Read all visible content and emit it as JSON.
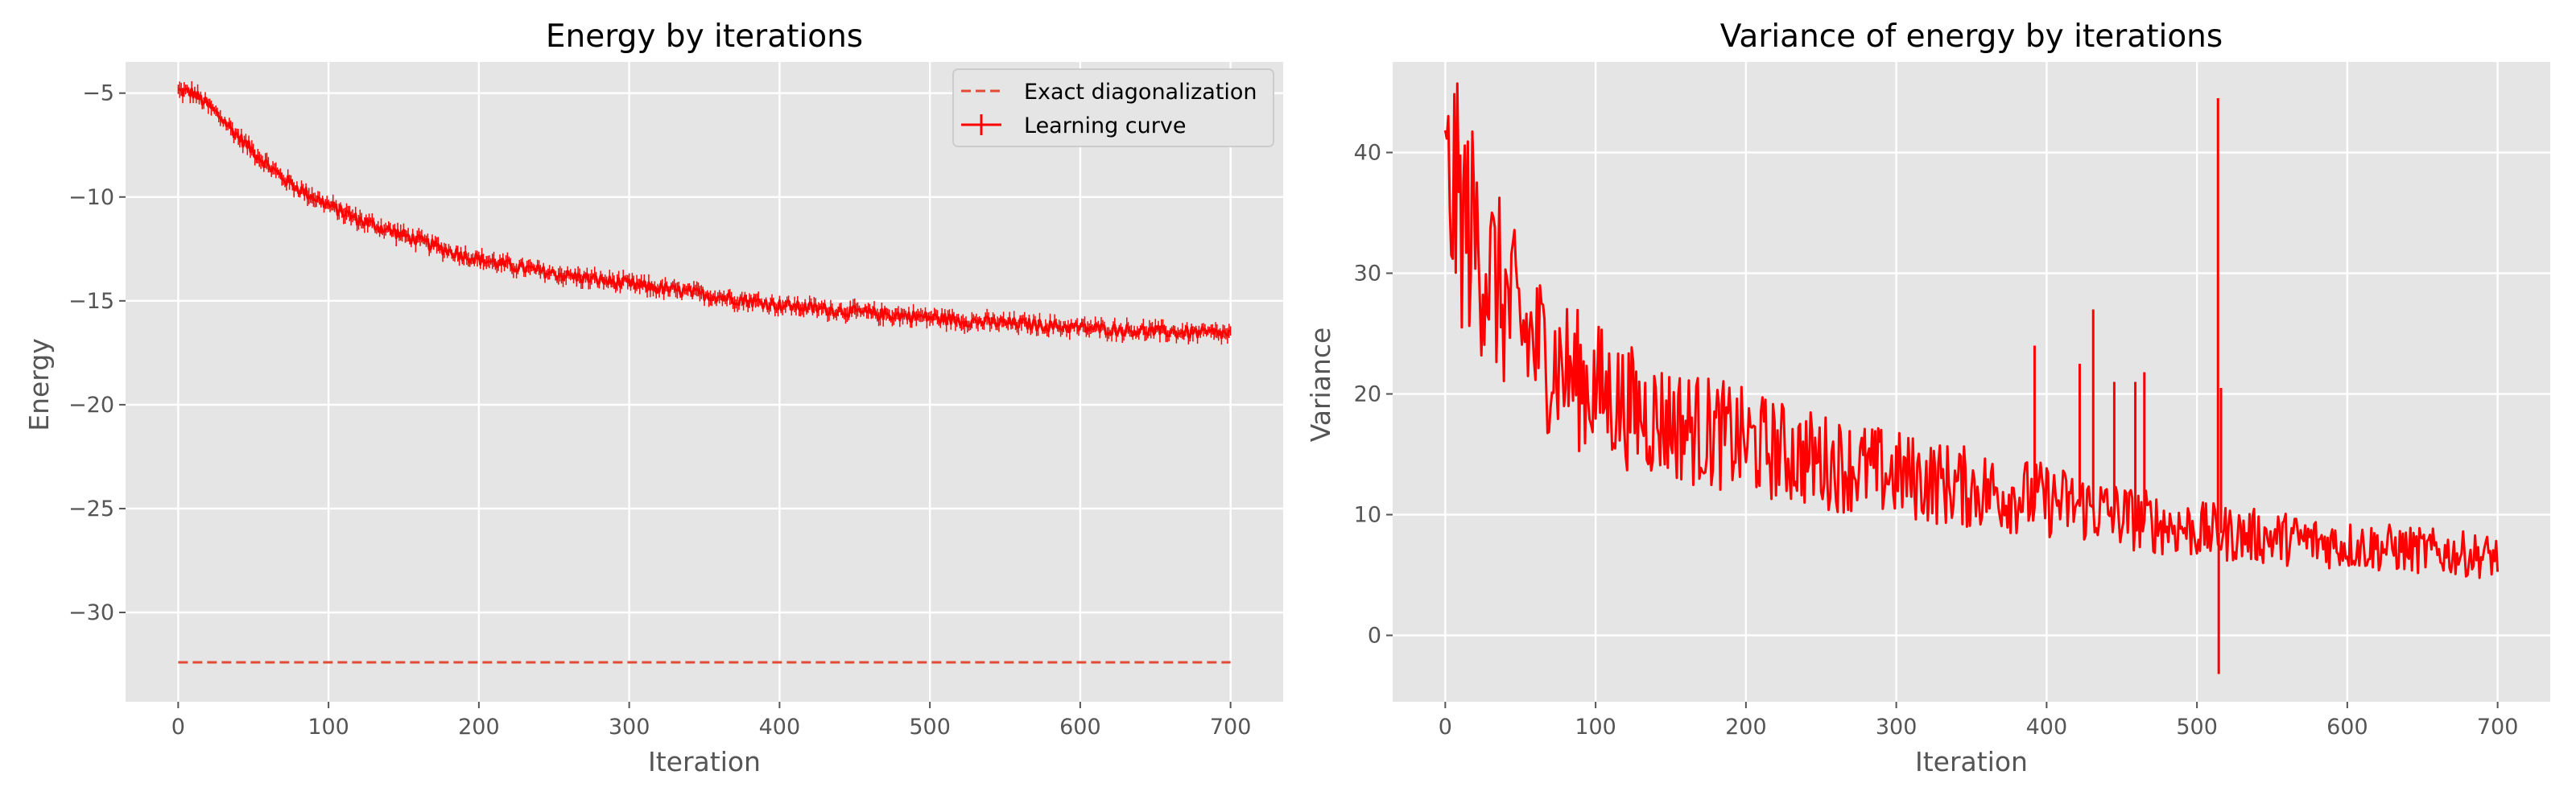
{
  "colors": {
    "curve": "#ff0000",
    "exact": "#e24a33",
    "background": "#e5e5e5",
    "grid": "#ffffff"
  },
  "chart_data": [
    {
      "type": "line",
      "title": "Energy by iterations",
      "xlabel": "Iteration",
      "ylabel": "Energy",
      "xlim": [
        -35,
        735
      ],
      "ylim": [
        -34.3,
        -3.5
      ],
      "xticks": [
        "0",
        "100",
        "200",
        "300",
        "400",
        "500",
        "600",
        "700"
      ],
      "yticks": [
        "−5",
        "−10",
        "−15",
        "−20",
        "−25",
        "−30"
      ],
      "grid": true,
      "legend": {
        "placement": "top-right",
        "entries": [
          "Exact diagonalization",
          "Learning curve"
        ]
      },
      "series": [
        {
          "name": "Exact diagonalization",
          "style": "dashed",
          "x": [
            0,
            700
          ],
          "y": [
            -32.4,
            -32.4
          ]
        },
        {
          "name": "Learning curve",
          "style": "solid-with-errorbars",
          "x": [
            0,
            10,
            20,
            30,
            40,
            50,
            60,
            70,
            80,
            90,
            100,
            120,
            140,
            160,
            180,
            200,
            220,
            250,
            280,
            300,
            330,
            360,
            400,
            430,
            460,
            500,
            530,
            560,
            600,
            630,
            660,
            700
          ],
          "y": [
            -4.9,
            -5.0,
            -5.6,
            -6.3,
            -7.1,
            -7.8,
            -8.5,
            -9.1,
            -9.6,
            -10.0,
            -10.4,
            -11.1,
            -11.6,
            -12.1,
            -12.6,
            -13.0,
            -13.3,
            -13.7,
            -14.0,
            -14.2,
            -14.5,
            -14.8,
            -15.2,
            -15.4,
            -15.6,
            -15.8,
            -16.0,
            -16.1,
            -16.3,
            -16.4,
            -16.5,
            -16.6
          ]
        }
      ]
    },
    {
      "type": "line",
      "title": "Variance of energy by iterations",
      "xlabel": "Iteration",
      "ylabel": "Variance",
      "xlim": [
        -35,
        735
      ],
      "ylim": [
        -5.5,
        47.5
      ],
      "xticks": [
        "0",
        "100",
        "200",
        "300",
        "400",
        "500",
        "600",
        "700"
      ],
      "yticks": [
        "40",
        "30",
        "20",
        "10",
        "0"
      ],
      "grid": true,
      "series": [
        {
          "style": "solid",
          "x": [
            0,
            5,
            10,
            20,
            30,
            40,
            50,
            60,
            70,
            80,
            90,
            100,
            120,
            140,
            160,
            180,
            200,
            230,
            260,
            300,
            330,
            360,
            400,
            430,
            460,
            500,
            530,
            560,
            600,
            650,
            700
          ],
          "y": [
            36,
            37,
            35,
            33,
            30,
            27.5,
            25.5,
            24,
            23,
            22,
            21,
            20.5,
            19,
            18,
            17.3,
            16.7,
            16,
            15,
            14.2,
            13.3,
            12.6,
            12,
            11.2,
            10.5,
            9.6,
            8.7,
            8.3,
            8.0,
            7.5,
            7.0,
            6.5
          ]
        }
      ],
      "spikes": [
        {
          "x": 392,
          "y": 24
        },
        {
          "x": 422,
          "y": 22.5
        },
        {
          "x": 431,
          "y": 27
        },
        {
          "x": 445,
          "y": 21
        },
        {
          "x": 459,
          "y": 21
        },
        {
          "x": 465,
          "y": 21.8
        },
        {
          "x": 514,
          "y": 44.5
        },
        {
          "x": 514.5,
          "y": -3.2
        },
        {
          "x": 516,
          "y": 20.5
        }
      ]
    }
  ]
}
